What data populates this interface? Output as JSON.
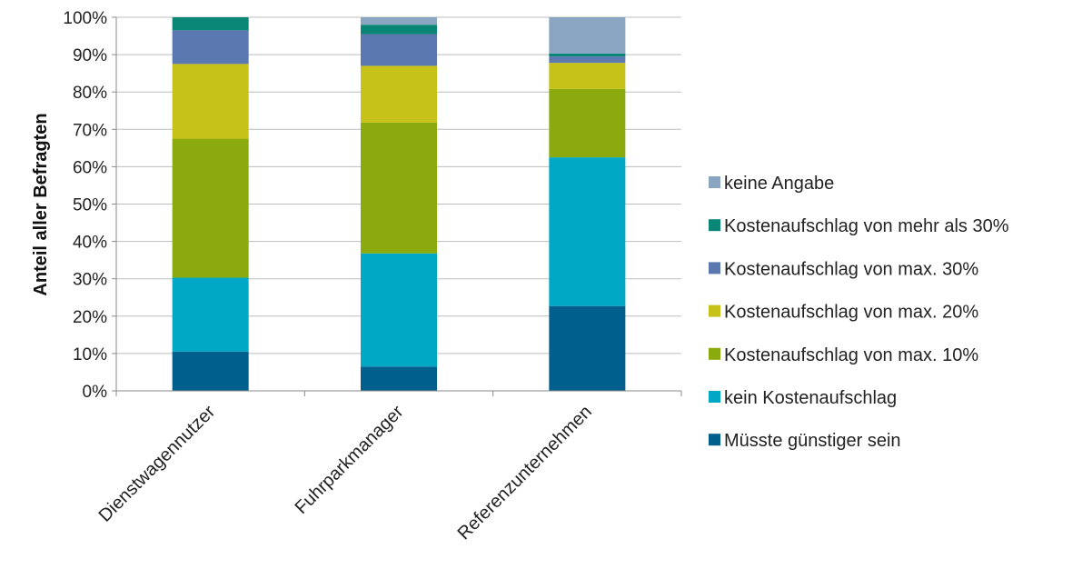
{
  "chart_data": {
    "type": "bar",
    "stacked": true,
    "title": "",
    "xlabel": "",
    "ylabel": "Anteil aller Befragten",
    "ylim": [
      0,
      100
    ],
    "y_ticks": [
      "0%",
      "10%",
      "20%",
      "30%",
      "40%",
      "50%",
      "60%",
      "70%",
      "80%",
      "90%",
      "100%"
    ],
    "grid": true,
    "legend_position": "right",
    "categories": [
      "Dienstwagennutzer",
      "Fuhrparkmanager",
      "Referenzunternehmen"
    ],
    "series": [
      {
        "name": "Müsste günstiger sein",
        "color": "#005f8c",
        "values": [
          10.5,
          6.5,
          22.7
        ]
      },
      {
        "name": "kein Kostenaufschlag",
        "color": "#00a8c6",
        "values": [
          19.8,
          30.3,
          39.8
        ]
      },
      {
        "name": "Kostenaufschlag von max. 10%",
        "color": "#8aaa0e",
        "values": [
          37.2,
          35.0,
          18.3
        ]
      },
      {
        "name": "Kostenaufschlag von max. 20%",
        "color": "#c6c21a",
        "values": [
          20.0,
          15.2,
          7.0
        ]
      },
      {
        "name": "Kostenaufschlag von max. 30%",
        "color": "#5b78b0",
        "values": [
          9.0,
          8.5,
          1.7
        ]
      },
      {
        "name": "Kostenaufschlag von mehr als 30%",
        "color": "#0a8676",
        "values": [
          3.5,
          2.5,
          0.8
        ]
      },
      {
        "name": "keine Angabe",
        "color": "#89a5c2",
        "values": [
          0.0,
          2.0,
          9.7
        ]
      }
    ]
  }
}
